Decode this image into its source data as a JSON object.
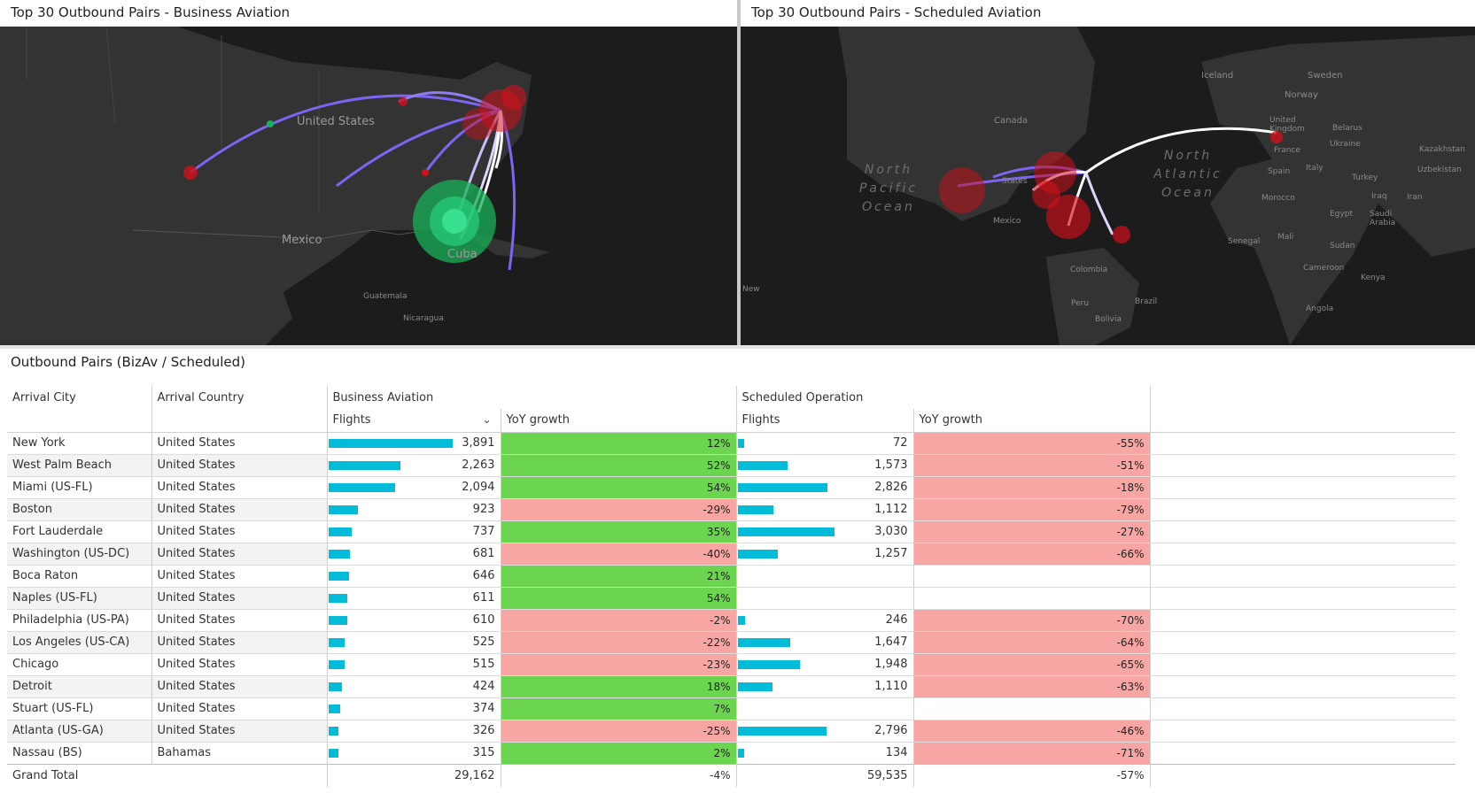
{
  "left_panel": {
    "title": "Top 30 Outbound Pairs - Business Aviation",
    "labels": [
      "United States",
      "Mexico",
      "Cuba",
      "Guatemala",
      "Nicaragua"
    ]
  },
  "right_panel": {
    "title": "Top 30 Outbound Pairs - Scheduled Aviation",
    "labels": [
      "Iceland",
      "Sweden",
      "Norway",
      "Canada",
      "United Kingdom",
      "Belarus",
      "Ukraine",
      "France",
      "Kazakhstan",
      "Spain",
      "Italy",
      "Uzbekistan",
      "Turkey",
      "Morocco",
      "Iraq",
      "Iran",
      "Egypt",
      "Saudi Arabia",
      "Mali",
      "Senegal",
      "Sudan",
      "Mexico",
      "States",
      "Colombia",
      "Cameroon",
      "Kenya",
      "Peru",
      "Brazil",
      "Bolivia",
      "Angola",
      "New"
    ],
    "oceans": [
      "North Pacific Ocean",
      "North Atlantic Ocean"
    ]
  },
  "colors": {
    "bar": "#00bcd8",
    "positive": "#6cd54f",
    "negative": "#f7a6a3",
    "map_bg": "#1c1c1c"
  },
  "table": {
    "title": "Outbound Pairs (BizAv / Scheduled)",
    "headers": {
      "arrival_city": "Arrival City",
      "arrival_country": "Arrival Country",
      "bizav": "Business Aviation",
      "scheduled": "Scheduled Operation",
      "flights": "Flights",
      "yoy": "YoY growth"
    },
    "rows": [
      {
        "city": "New York",
        "country": "United States",
        "biz_flights": "3,891",
        "biz_yoy": "12%",
        "sch_flights": "72",
        "sch_yoy": "-55%"
      },
      {
        "city": "West Palm Beach",
        "country": "United States",
        "biz_flights": "2,263",
        "biz_yoy": "52%",
        "sch_flights": "1,573",
        "sch_yoy": "-51%"
      },
      {
        "city": "Miami (US-FL)",
        "country": "United States",
        "biz_flights": "2,094",
        "biz_yoy": "54%",
        "sch_flights": "2,826",
        "sch_yoy": "-18%"
      },
      {
        "city": "Boston",
        "country": "United States",
        "biz_flights": "923",
        "biz_yoy": "-29%",
        "sch_flights": "1,112",
        "sch_yoy": "-79%"
      },
      {
        "city": "Fort Lauderdale",
        "country": "United States",
        "biz_flights": "737",
        "biz_yoy": "35%",
        "sch_flights": "3,030",
        "sch_yoy": "-27%"
      },
      {
        "city": "Washington (US-DC)",
        "country": "United States",
        "biz_flights": "681",
        "biz_yoy": "-40%",
        "sch_flights": "1,257",
        "sch_yoy": "-66%"
      },
      {
        "city": "Boca Raton",
        "country": "United States",
        "biz_flights": "646",
        "biz_yoy": "21%",
        "sch_flights": "",
        "sch_yoy": ""
      },
      {
        "city": "Naples (US-FL)",
        "country": "United States",
        "biz_flights": "611",
        "biz_yoy": "54%",
        "sch_flights": "",
        "sch_yoy": ""
      },
      {
        "city": "Philadelphia (US-PA)",
        "country": "United States",
        "biz_flights": "610",
        "biz_yoy": "-2%",
        "sch_flights": "246",
        "sch_yoy": "-70%"
      },
      {
        "city": "Los Angeles (US-CA)",
        "country": "United States",
        "biz_flights": "525",
        "biz_yoy": "-22%",
        "sch_flights": "1,647",
        "sch_yoy": "-64%"
      },
      {
        "city": "Chicago",
        "country": "United States",
        "biz_flights": "515",
        "biz_yoy": "-23%",
        "sch_flights": "1,948",
        "sch_yoy": "-65%"
      },
      {
        "city": "Detroit",
        "country": "United States",
        "biz_flights": "424",
        "biz_yoy": "18%",
        "sch_flights": "1,110",
        "sch_yoy": "-63%"
      },
      {
        "city": "Stuart (US-FL)",
        "country": "United States",
        "biz_flights": "374",
        "biz_yoy": "7%",
        "sch_flights": "",
        "sch_yoy": ""
      },
      {
        "city": "Atlanta (US-GA)",
        "country": "United States",
        "biz_flights": "326",
        "biz_yoy": "-25%",
        "sch_flights": "2,796",
        "sch_yoy": "-46%"
      },
      {
        "city": "Nassau (BS)",
        "country": "Bahamas",
        "biz_flights": "315",
        "biz_yoy": "2%",
        "sch_flights": "134",
        "sch_yoy": "-71%"
      }
    ],
    "total": {
      "label": "Grand Total",
      "biz_flights": "29,162",
      "biz_yoy": "-4%",
      "sch_flights": "59,535",
      "sch_yoy": "-57%"
    }
  }
}
